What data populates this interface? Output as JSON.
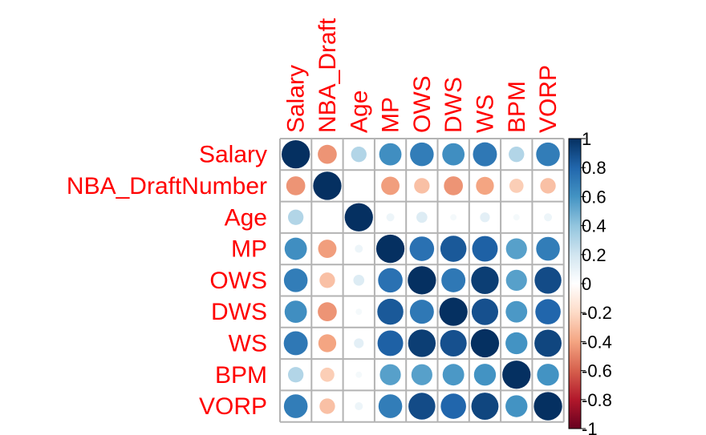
{
  "chart_data": {
    "type": "heatmap",
    "style": "circle",
    "variables": [
      "Salary",
      "NBA_DraftNumber",
      "Age",
      "MP",
      "OWS",
      "DWS",
      "WS",
      "BPM",
      "VORP"
    ],
    "column_labels": [
      "Salary",
      "NBA_Draft",
      "Age",
      "MP",
      "OWS",
      "DWS",
      "WS",
      "BPM",
      "VORP"
    ],
    "matrix": [
      [
        1.0,
        -0.45,
        0.3,
        0.62,
        0.7,
        0.62,
        0.72,
        0.3,
        0.7
      ],
      [
        -0.45,
        1.0,
        0.0,
        -0.42,
        -0.3,
        -0.45,
        -0.4,
        -0.25,
        -0.3
      ],
      [
        0.3,
        0.0,
        1.0,
        0.08,
        0.15,
        0.05,
        0.12,
        0.05,
        0.08
      ],
      [
        0.62,
        -0.42,
        0.08,
        1.0,
        0.75,
        0.85,
        0.82,
        0.55,
        0.7
      ],
      [
        0.7,
        -0.3,
        0.15,
        0.75,
        1.0,
        0.72,
        0.95,
        0.55,
        0.9
      ],
      [
        0.62,
        -0.45,
        0.05,
        0.85,
        0.72,
        1.0,
        0.88,
        0.58,
        0.8
      ],
      [
        0.72,
        -0.4,
        0.12,
        0.82,
        0.95,
        0.88,
        1.0,
        0.6,
        0.92
      ],
      [
        0.3,
        -0.25,
        0.05,
        0.55,
        0.55,
        0.58,
        0.6,
        1.0,
        0.6
      ],
      [
        0.7,
        -0.3,
        0.08,
        0.7,
        0.9,
        0.8,
        0.92,
        0.6,
        1.0
      ]
    ],
    "colorbar": {
      "range": [
        -1,
        1
      ],
      "ticks": [
        "1",
        "0.8",
        "0.6",
        "0.4",
        "0.2",
        "0",
        "-0.2",
        "-0.4",
        "-0.6",
        "-0.8",
        "-1"
      ],
      "values": [
        1,
        0.8,
        0.6,
        0.4,
        0.2,
        0,
        -0.2,
        -0.4,
        -0.6,
        -0.8,
        -1
      ]
    },
    "colors": {
      "label": "#ff0000",
      "grid": "#b3b3b3",
      "scale": [
        "#67001f",
        "#b2182b",
        "#d6604d",
        "#f4a582",
        "#fddbc7",
        "#ffffff",
        "#d1e5f0",
        "#92c5de",
        "#4393c3",
        "#2166ac",
        "#053061"
      ]
    }
  }
}
